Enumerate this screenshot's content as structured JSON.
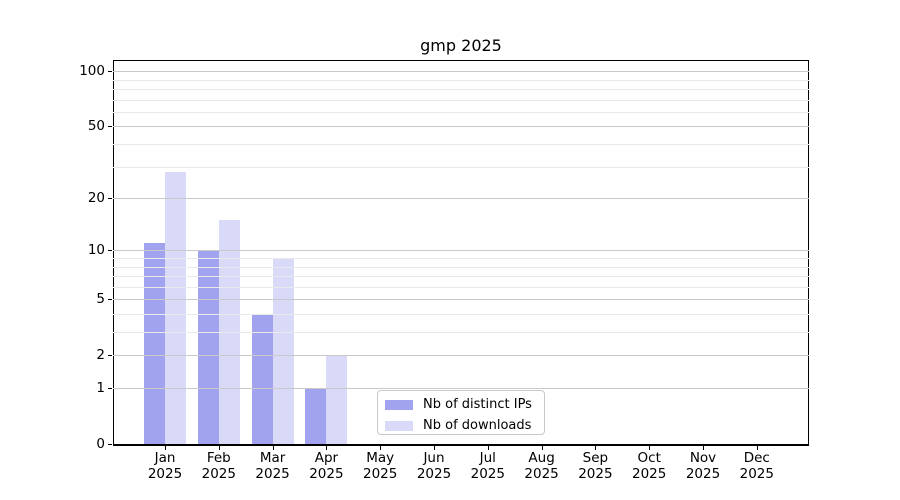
{
  "chart_data": {
    "type": "bar",
    "title": "gmp 2025",
    "categories": [
      "Jan 2025",
      "Feb 2025",
      "Mar 2025",
      "Apr 2025",
      "May 2025",
      "Jun 2025",
      "Jul 2025",
      "Aug 2025",
      "Sep 2025",
      "Oct 2025",
      "Nov 2025",
      "Dec 2025"
    ],
    "series": [
      {
        "name": "Nb of distinct IPs",
        "color": "#a2a3ee",
        "values": [
          11,
          10,
          4,
          1,
          0,
          0,
          0,
          0,
          0,
          0,
          0,
          0
        ]
      },
      {
        "name": "Nb of downloads",
        "color": "#d9daf8",
        "values": [
          28,
          15,
          9,
          2,
          0,
          0,
          0,
          0,
          0,
          0,
          0,
          0
        ]
      }
    ],
    "yscale": "log10(value+1)",
    "ylim": [
      0,
      115
    ],
    "ytick_values": [
      0,
      1,
      2,
      5,
      10,
      20,
      50,
      100
    ],
    "minor_gridline_values": [
      3,
      4,
      6,
      7,
      8,
      9,
      30,
      40,
      60,
      70,
      80,
      90
    ],
    "grid": "horizontal",
    "legend_position": "inside-bottom-center",
    "colors": {
      "major_grid": "#c9c9c9",
      "minor_grid": "#e9e9e9",
      "axis": "#000000",
      "legend_border": "#c8c8c8",
      "background": "#ffffff"
    }
  }
}
